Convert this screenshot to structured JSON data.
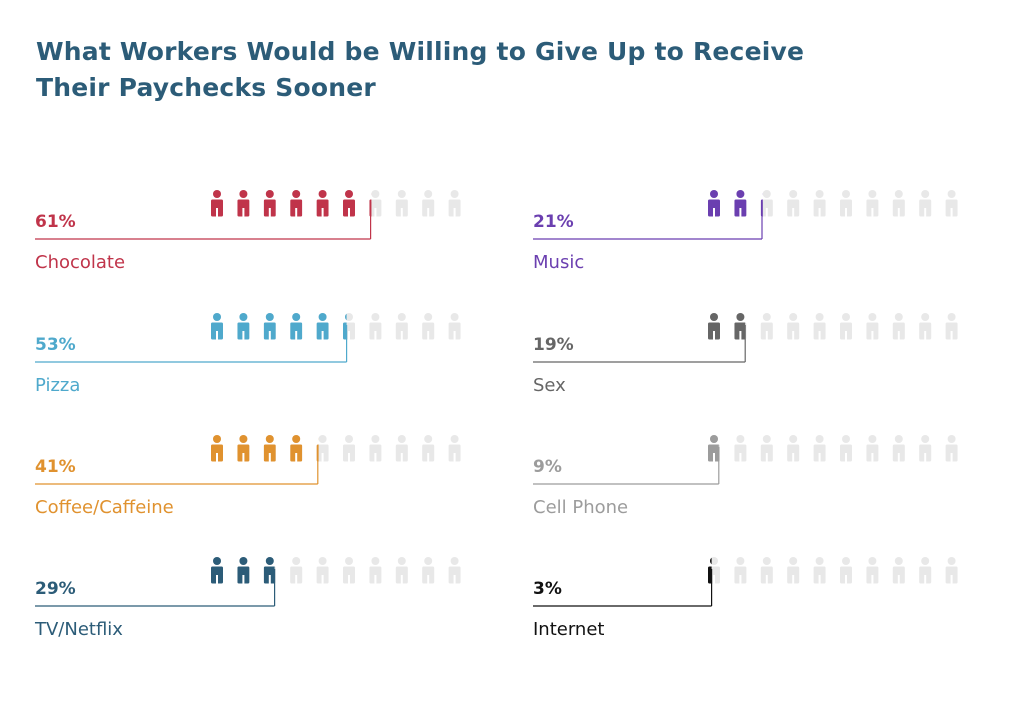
{
  "title_lines": [
    "What Workers Would be Willing to Give Up to Receive",
    "Their Paychecks Sooner"
  ],
  "chart_data": {
    "type": "pictograph",
    "title": "What Workers Would be Willing to Give Up to Receive Their Paychecks Sooner",
    "unit": "%",
    "icons_per_row": 10,
    "value_per_icon": 10,
    "empty_color": "#e8e8e8",
    "items": [
      {
        "label": "Chocolate",
        "value": 61,
        "value_label": "61%",
        "color": "#c0344a",
        "column": "left"
      },
      {
        "label": "Pizza",
        "value": 53,
        "value_label": "53%",
        "color": "#4fa9cc",
        "column": "left"
      },
      {
        "label": "Coffee/Caffeine",
        "value": 41,
        "value_label": "41%",
        "color": "#e0922f",
        "column": "left"
      },
      {
        "label": "TV/Netflix",
        "value": 29,
        "value_label": "29%",
        "color": "#2c5c78",
        "column": "left"
      },
      {
        "label": "Music",
        "value": 21,
        "value_label": "21%",
        "color": "#6b3fb0",
        "column": "right"
      },
      {
        "label": "Sex",
        "value": 19,
        "value_label": "19%",
        "color": "#666666",
        "column": "right"
      },
      {
        "label": "Cell Phone",
        "value": 9,
        "value_label": "9%",
        "color": "#9c9c9c",
        "column": "right"
      },
      {
        "label": "Internet",
        "value": 3,
        "value_label": "3%",
        "color": "#111111",
        "column": "right"
      }
    ]
  }
}
